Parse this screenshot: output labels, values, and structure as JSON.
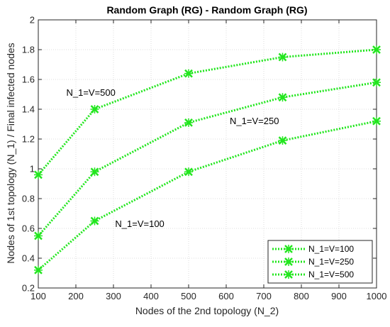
{
  "chart_data": {
    "type": "line",
    "title": "Random Graph (RG) - Random Graph (RG)",
    "xlabel": "Nodes of the 2nd topology (N_2)",
    "ylabel": "Nodes of 1st topology (N_1) / Final infected nodes",
    "xlim": [
      100,
      1000
    ],
    "ylim": [
      0.2,
      2
    ],
    "xticks": [
      "100",
      "200",
      "300",
      "400",
      "500",
      "600",
      "700",
      "800",
      "900",
      "1000"
    ],
    "yticks": [
      "0.2",
      "0.4",
      "0.6",
      "0.8",
      "1",
      "1.2",
      "1.4",
      "1.6",
      "1.8",
      "2"
    ],
    "grid": true,
    "legend_position": "bottom-right",
    "line_color": "#22e61e",
    "marker": "x",
    "x": [
      100,
      250,
      500,
      750,
      1000
    ],
    "series": [
      {
        "name": "N_1=V=100",
        "values": [
          0.32,
          0.65,
          0.98,
          1.19,
          1.32
        ]
      },
      {
        "name": "N_1=V=250",
        "values": [
          0.55,
          0.98,
          1.31,
          1.48,
          1.58
        ]
      },
      {
        "name": "N_1=V=500",
        "values": [
          0.96,
          1.4,
          1.64,
          1.75,
          1.8
        ]
      }
    ],
    "annotations": [
      {
        "text": "N_1=V=500",
        "x": 240,
        "y": 1.49
      },
      {
        "text": "N_1=V=250",
        "x": 675,
        "y": 1.3
      },
      {
        "text": "N_1=V=100",
        "x": 370,
        "y": 0.61
      }
    ]
  }
}
